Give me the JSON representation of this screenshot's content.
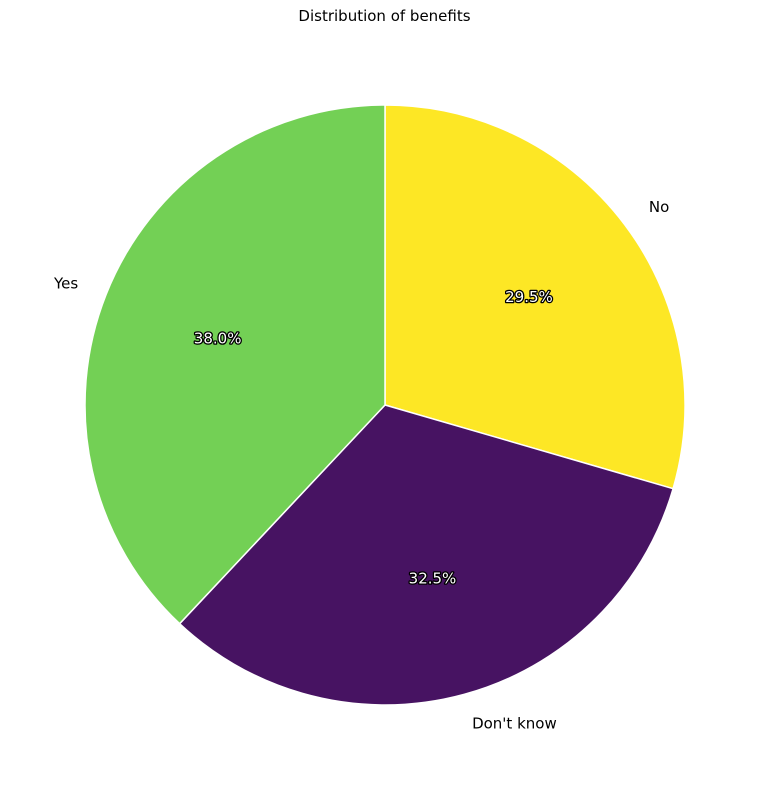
{
  "chart_data": {
    "type": "pie",
    "title": "Distribution of benefits",
    "categories": [
      "No",
      "Don't know",
      "Yes"
    ],
    "values": [
      29.5,
      32.5,
      38.0
    ],
    "percent_labels": [
      "29.5%",
      "32.5%",
      "38.0%"
    ],
    "colors": [
      "#fde725",
      "#471362",
      "#73d055"
    ],
    "start_angle": 90,
    "direction": "clockwise",
    "edge_color": "#ffffff"
  }
}
